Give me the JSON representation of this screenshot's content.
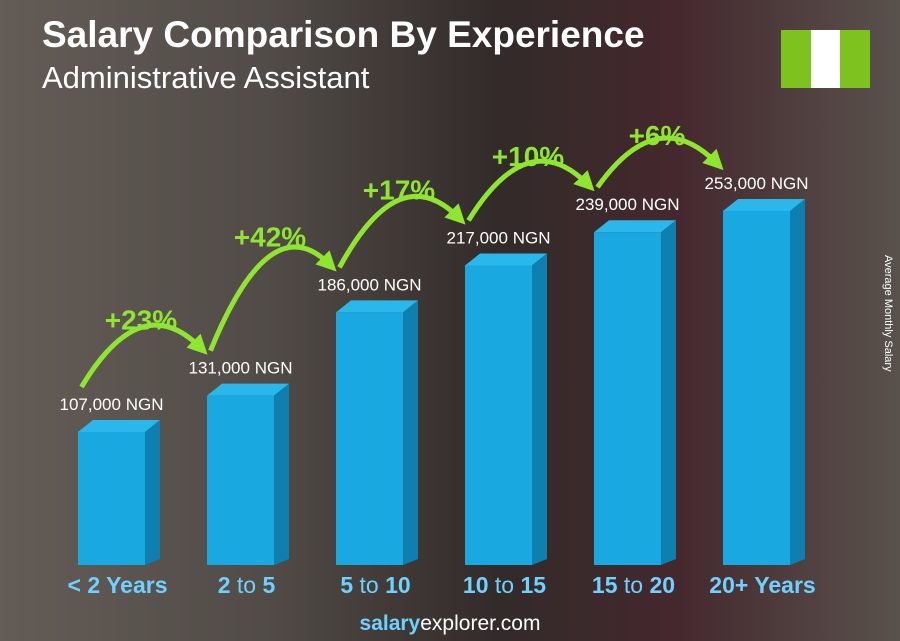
{
  "header": {
    "title": "Salary Comparison By Experience",
    "subtitle": "Administrative Assistant"
  },
  "flag": {
    "country": "Nigeria",
    "colors": [
      "#7ec21f",
      "#ffffff",
      "#7ec21f"
    ]
  },
  "footer": {
    "brand_bold": "salary",
    "brand_rest": "explorer.com"
  },
  "chart_data": {
    "type": "bar",
    "title": "Salary Comparison By Experience",
    "subtitle": "Administrative Assistant",
    "ylabel": "Average Monthly Salary",
    "categories": [
      "< 2 Years",
      "2 to 5",
      "5 to 10",
      "10 to 15",
      "15 to 20",
      "20+ Years"
    ],
    "category_parts": [
      [
        "< 2 Years"
      ],
      [
        "2",
        " to ",
        "5"
      ],
      [
        "5",
        " to ",
        "10"
      ],
      [
        "10",
        " to ",
        "15"
      ],
      [
        "15",
        " to ",
        "20"
      ],
      [
        "20+ Years"
      ]
    ],
    "values": [
      107000,
      131000,
      186000,
      217000,
      239000,
      253000
    ],
    "value_labels": [
      "107,000 NGN",
      "131,000 NGN",
      "186,000 NGN",
      "217,000 NGN",
      "239,000 NGN",
      "253,000 NGN"
    ],
    "growth_labels": [
      "+23%",
      "+42%",
      "+17%",
      "+10%",
      "+6%"
    ],
    "colors": {
      "bar": "#1aa8e0",
      "bar_side": "#0f7fb0",
      "bar_top": "#2ab8ec",
      "growth": "#8fe630",
      "category": "#6fd1ff"
    }
  }
}
